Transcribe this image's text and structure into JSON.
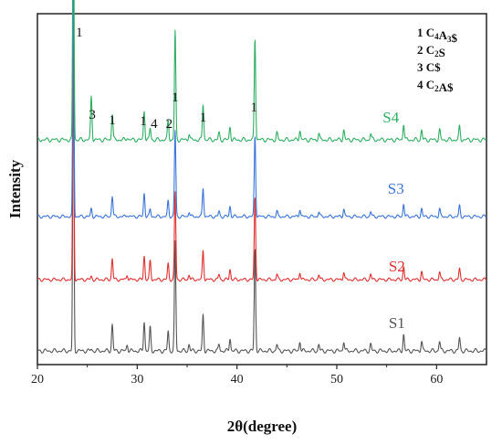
{
  "chart_data": {
    "type": "line",
    "xlabel": "2θ(degree)",
    "ylabel": "Intensity",
    "xlim": [
      20,
      65
    ],
    "x_ticks": [
      20,
      30,
      40,
      50,
      60
    ],
    "grid": false,
    "legend": {
      "placement": "top-right",
      "items": [
        {
          "num": "1",
          "parts": [
            [
              "C",
              ""
            ],
            [
              "4",
              "sub"
            ],
            [
              "A",
              ""
            ],
            [
              "3",
              "sub"
            ],
            [
              "$",
              ""
            ]
          ]
        },
        {
          "num": "2",
          "parts": [
            [
              "C",
              ""
            ],
            [
              "2",
              "sub"
            ],
            [
              "S",
              ""
            ]
          ]
        },
        {
          "num": "3",
          "parts": [
            [
              "C$",
              ""
            ]
          ]
        },
        {
          "num": "4",
          "parts": [
            [
              "C",
              ""
            ],
            [
              "2",
              "sub"
            ],
            [
              "A$",
              ""
            ]
          ]
        }
      ]
    },
    "peaks": [
      {
        "x": 23.6,
        "h": 1.0
      },
      {
        "x": 25.4,
        "h": 0.06
      },
      {
        "x": 27.5,
        "h": 0.08
      },
      {
        "x": 29.0,
        "h": 0.02
      },
      {
        "x": 30.7,
        "h": 0.09
      },
      {
        "x": 31.3,
        "h": 0.07
      },
      {
        "x": 33.1,
        "h": 0.06
      },
      {
        "x": 33.8,
        "h": 0.33
      },
      {
        "x": 35.2,
        "h": 0.02
      },
      {
        "x": 36.6,
        "h": 0.11
      },
      {
        "x": 38.2,
        "h": 0.02
      },
      {
        "x": 39.3,
        "h": 0.04
      },
      {
        "x": 41.8,
        "h": 0.31
      },
      {
        "x": 44.0,
        "h": 0.02
      },
      {
        "x": 46.3,
        "h": 0.03
      },
      {
        "x": 48.2,
        "h": 0.02
      },
      {
        "x": 50.7,
        "h": 0.03
      },
      {
        "x": 53.4,
        "h": 0.02
      },
      {
        "x": 56.7,
        "h": 0.05
      },
      {
        "x": 58.5,
        "h": 0.03
      },
      {
        "x": 60.3,
        "h": 0.03
      },
      {
        "x": 62.3,
        "h": 0.04
      }
    ],
    "series": [
      {
        "name": "S1",
        "color": "#555555",
        "main_peak": 360,
        "s25": 0.1,
        "s29": 1.0,
        "s31": 1.0
      },
      {
        "name": "S2",
        "color": "#e03030",
        "main_peak": 290,
        "s25": 0.2,
        "s29": 1.0,
        "s31": 1.0
      },
      {
        "name": "S3",
        "color": "#3a74d8",
        "main_peak": 285,
        "s25": 0.5,
        "s29": 0.4,
        "s31": 0.4
      },
      {
        "name": "S4",
        "color": "#2fae62",
        "main_peak": 360,
        "s25": 2.2,
        "s29": 0.4,
        "s31": 0.5
      }
    ],
    "peak_labels": [
      {
        "text": "1",
        "x": 24.2
      },
      {
        "text": "3",
        "x": 25.5
      },
      {
        "text": "1",
        "x": 27.5
      },
      {
        "text": "1",
        "x": 30.6
      },
      {
        "text": "4",
        "x": 31.7
      },
      {
        "text": "2",
        "x": 33.2
      },
      {
        "text": "1",
        "x": 33.8
      },
      {
        "text": "1",
        "x": 36.6
      },
      {
        "text": "1",
        "x": 41.7
      }
    ]
  }
}
